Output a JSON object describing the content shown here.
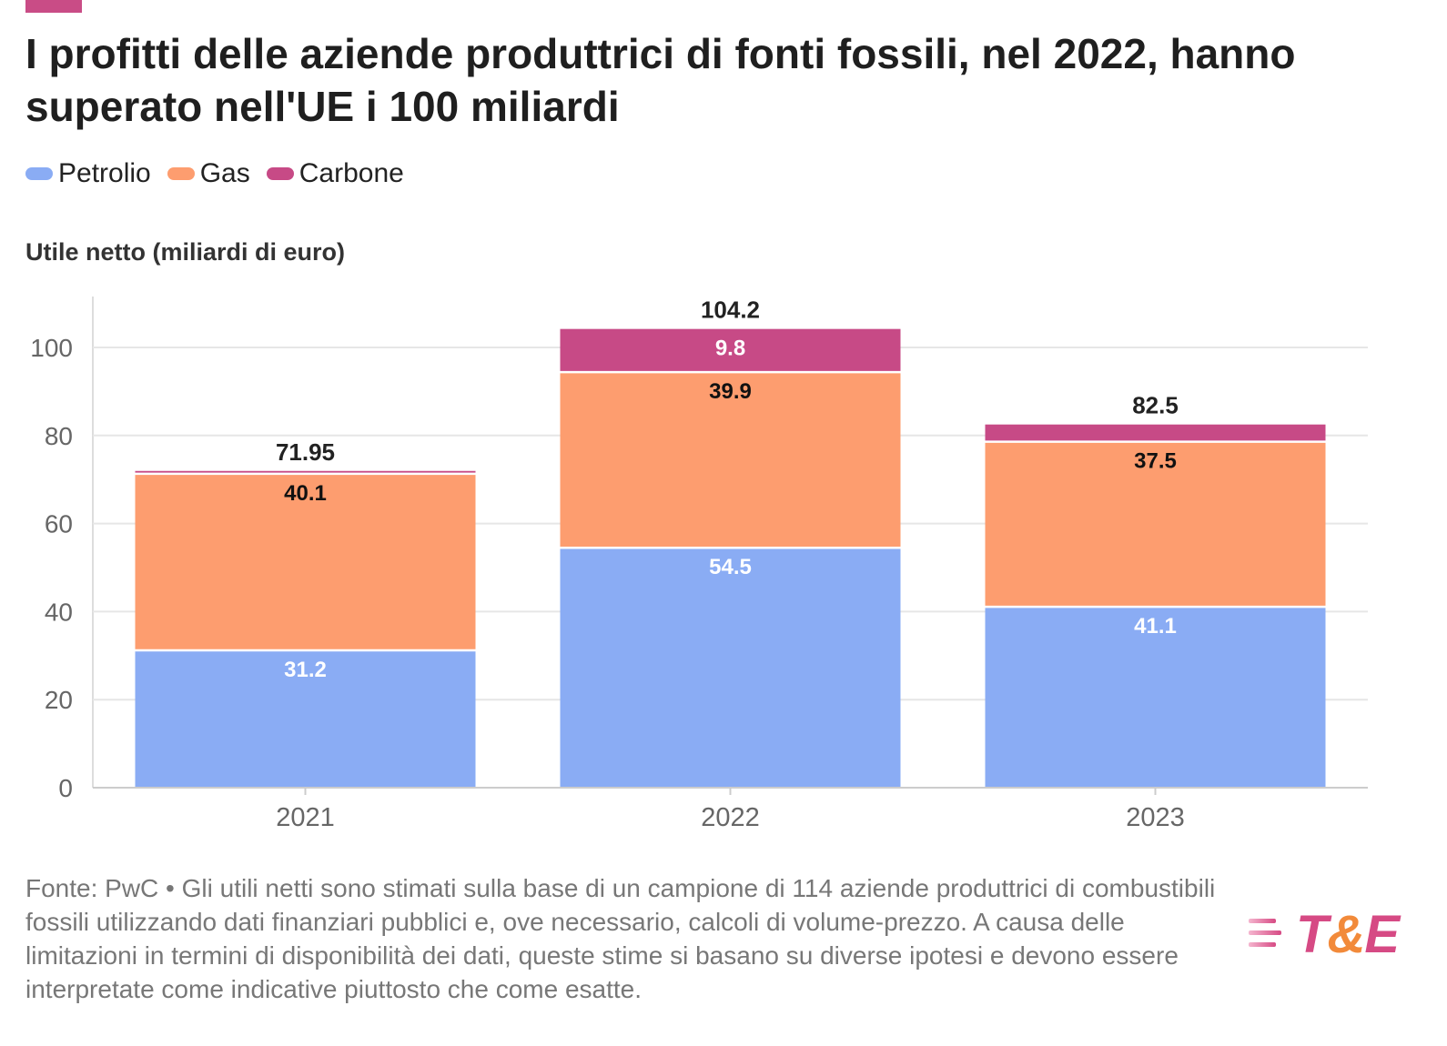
{
  "title": "I profitti delle aziende produttrici di fonti fossili, nel 2022, hanno superato nell'UE i 100 miliardi",
  "legend": [
    {
      "label": "Petrolio",
      "color": "#8aacf4"
    },
    {
      "label": "Gas",
      "color": "#fd9d6f"
    },
    {
      "label": "Carbone",
      "color": "#c74a86"
    }
  ],
  "footer": "Fonte: PwC • Gli utili netti sono stimati sulla base di un campione di 114 aziende produttrici di combustibili fossili utilizzando dati finanziari pubblici e, ove necessario, calcoli di volume-prezzo. A causa delle limitazioni in termini di disponibilità dei dati, queste stime si basano su diverse ipotesi e devono essere interpretate come indicative piuttosto che come esatte.",
  "logo": {
    "text_main": "T",
    "text_amp": "&",
    "text_end": "E"
  },
  "colors": {
    "accent": "#c94c86",
    "petrolio": "#8aacf4",
    "gas": "#fd9d6f",
    "carbone": "#c74a86",
    "grid": "#e6e6e6"
  },
  "chart_data": {
    "type": "bar",
    "stacked": true,
    "title": "I profitti delle aziende produttrici di fonti fossili, nel 2022, hanno superato nell'UE i 100 miliardi",
    "ylabel": "Utile netto (miliardi di euro)",
    "xlabel": "",
    "categories": [
      "2021",
      "2022",
      "2023"
    ],
    "series": [
      {
        "name": "Petrolio",
        "values": [
          31.2,
          54.5,
          41.1
        ],
        "labels": [
          "31.2",
          "54.5",
          "41.1"
        ]
      },
      {
        "name": "Gas",
        "values": [
          40.1,
          39.9,
          37.5
        ],
        "labels": [
          "40.1",
          "39.9",
          "37.5"
        ]
      },
      {
        "name": "Carbone",
        "values": [
          0.65,
          9.8,
          3.9
        ],
        "labels": [
          "",
          "9.8",
          ""
        ]
      }
    ],
    "totals": [
      "71.95",
      "104.2",
      "82.5"
    ],
    "ylim": [
      0,
      110
    ],
    "yticks": [
      0,
      20,
      40,
      60,
      80,
      100
    ],
    "grid": true,
    "legend_position": "top-left"
  }
}
